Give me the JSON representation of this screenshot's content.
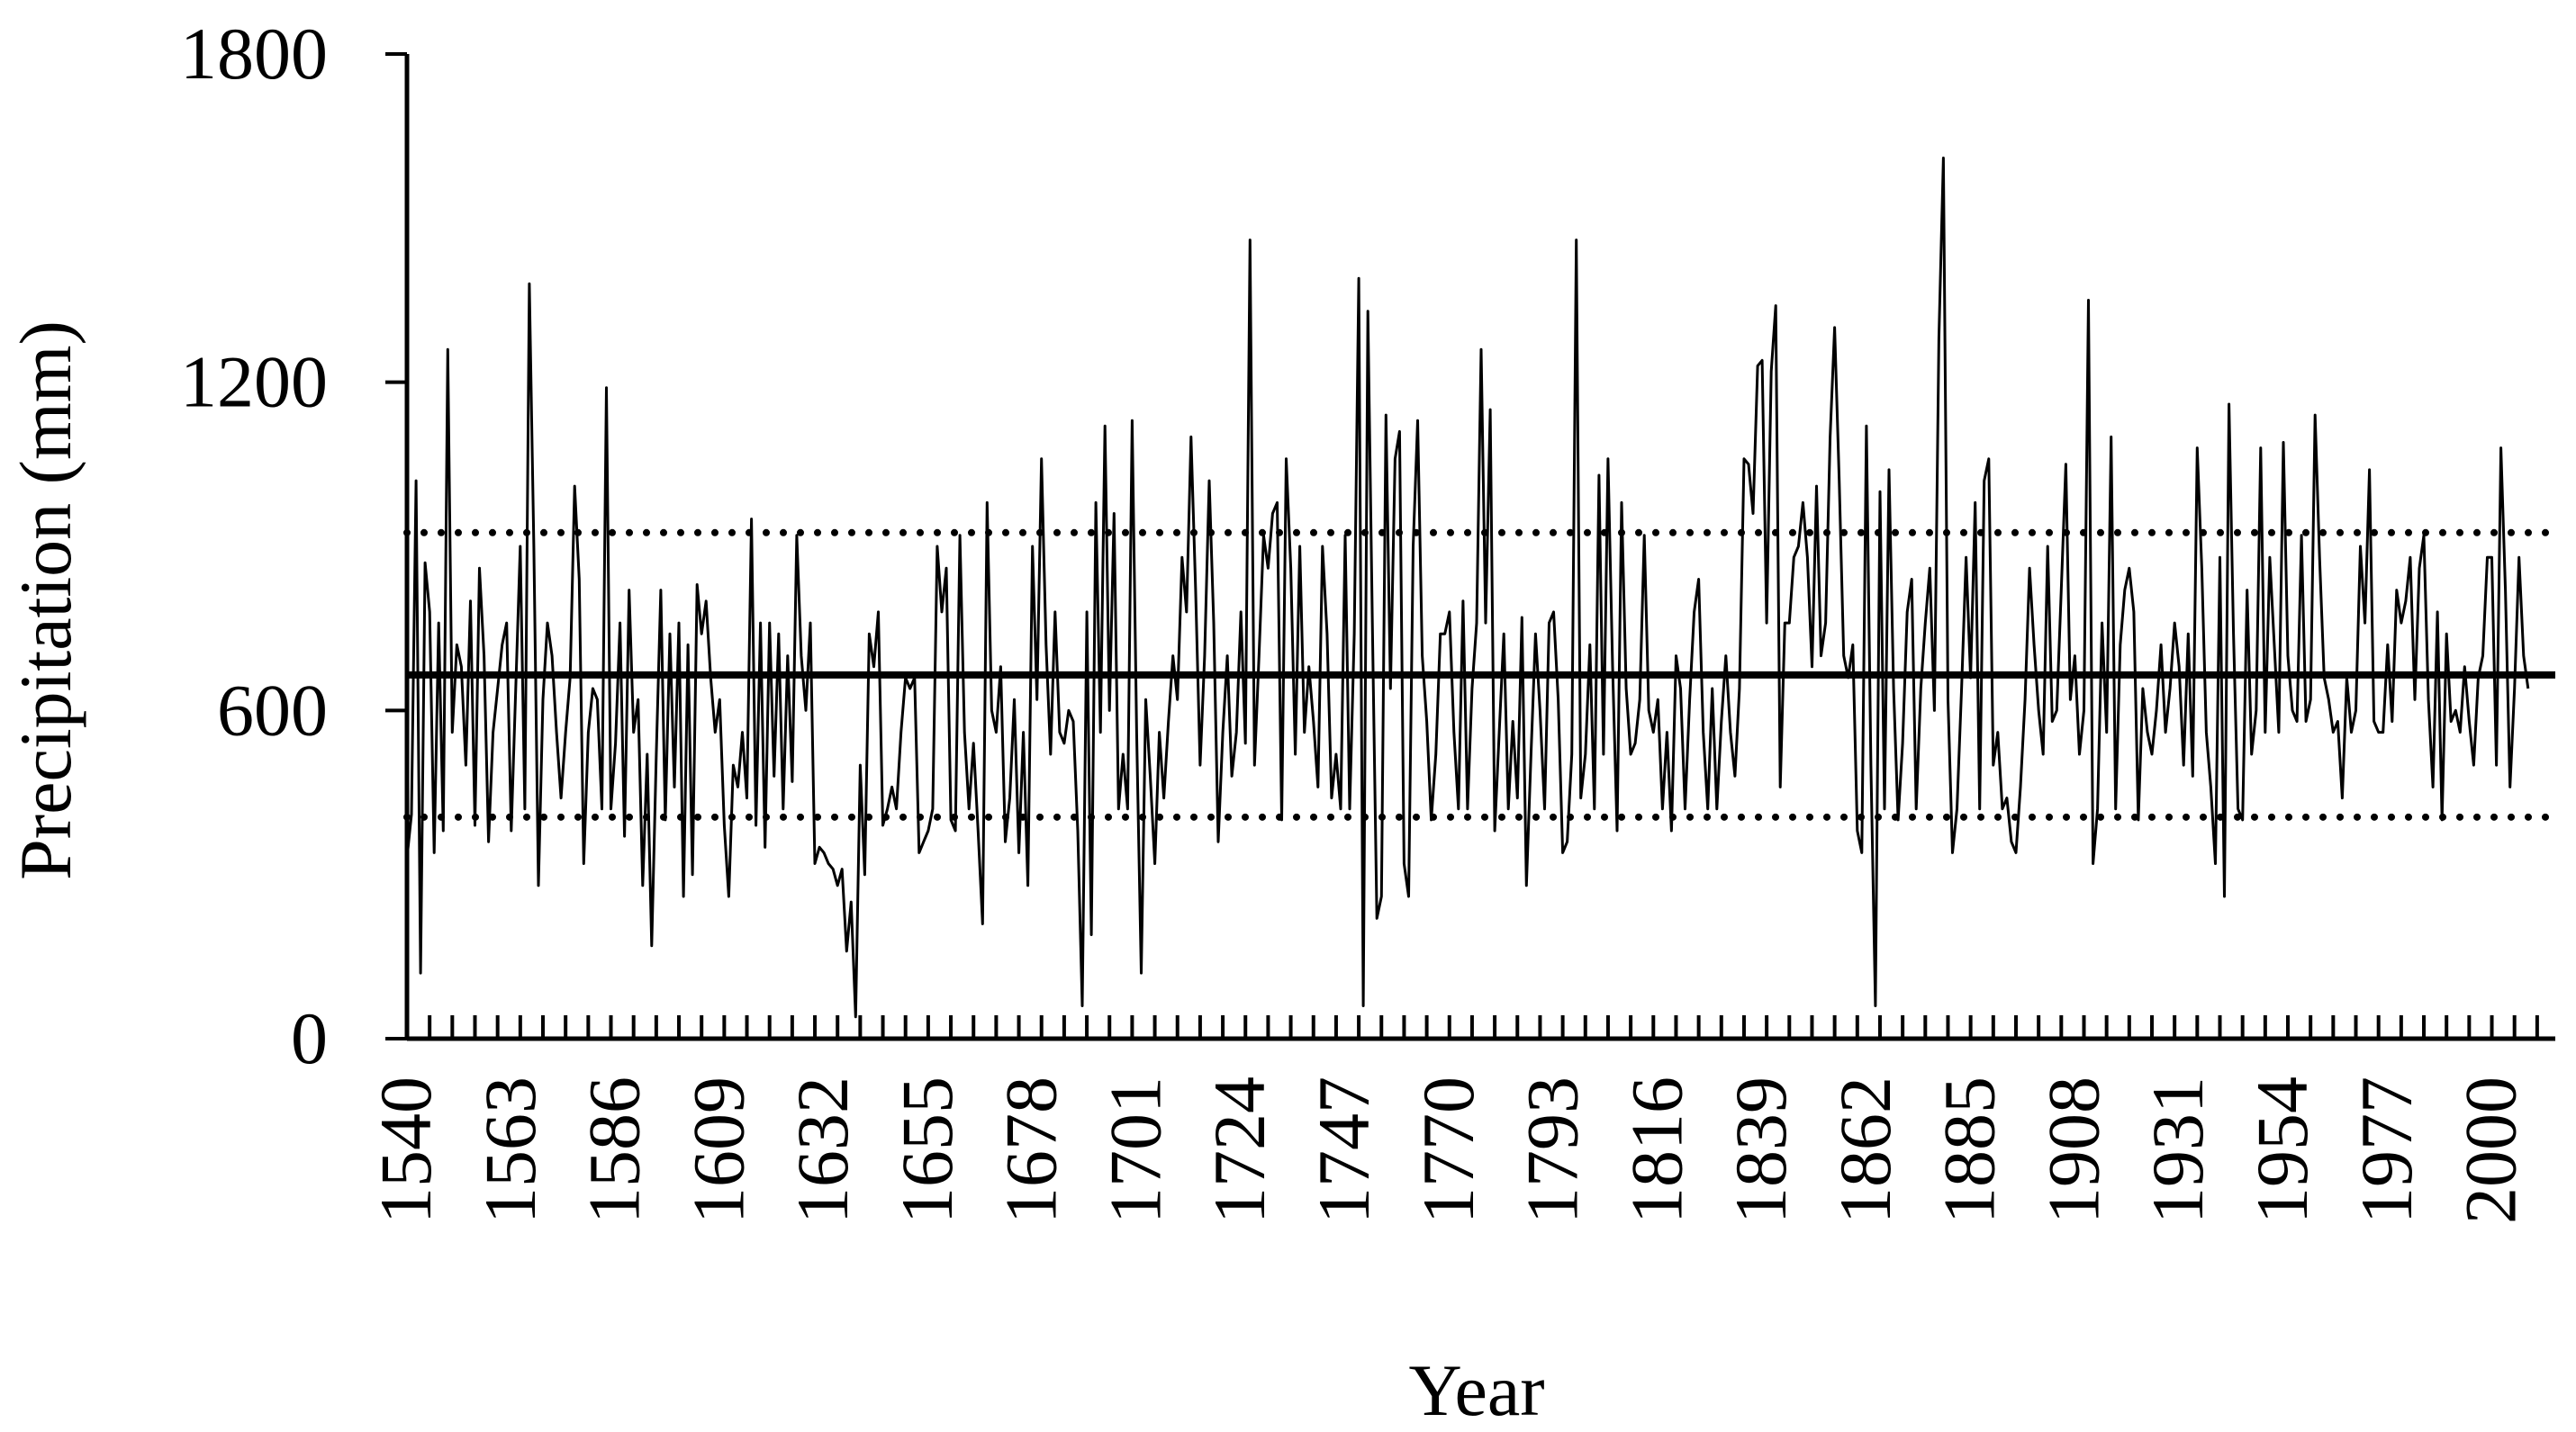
{
  "chart_data": {
    "type": "line",
    "xlabel": "Year",
    "ylabel": "Precipitation (mm)",
    "ylim": [
      0,
      1800
    ],
    "yticks": [
      0,
      600,
      1200,
      1800
    ],
    "xlim": [
      1540,
      2014
    ],
    "xticks": [
      1540,
      1563,
      1586,
      1609,
      1632,
      1655,
      1678,
      1701,
      1724,
      1747,
      1770,
      1793,
      1816,
      1839,
      1862,
      1885,
      1908,
      1931,
      1954,
      1977,
      2000
    ],
    "grid": false,
    "reference_lines": [
      {
        "style": "solid",
        "value": 665
      },
      {
        "style": "dotted",
        "value": 925
      },
      {
        "style": "dotted",
        "value": 405
      }
    ],
    "series": [
      {
        "x_start": 1540,
        "x_step": 1,
        "values": [
          330,
          410,
          1020,
          120,
          870,
          780,
          340,
          760,
          380,
          1260,
          560,
          720,
          680,
          500,
          800,
          390,
          860,
          700,
          360,
          560,
          640,
          720,
          760,
          380,
          640,
          900,
          420,
          1380,
          900,
          280,
          620,
          760,
          700,
          560,
          440,
          560,
          660,
          1010,
          840,
          320,
          560,
          640,
          620,
          420,
          1190,
          420,
          540,
          760,
          370,
          820,
          560,
          620,
          280,
          520,
          170,
          520,
          820,
          400,
          740,
          460,
          760,
          260,
          720,
          300,
          830,
          740,
          800,
          660,
          560,
          620,
          390,
          260,
          500,
          460,
          560,
          440,
          950,
          390,
          760,
          350,
          760,
          480,
          740,
          420,
          700,
          470,
          920,
          700,
          600,
          760,
          320,
          350,
          340,
          320,
          310,
          280,
          310,
          160,
          250,
          40,
          500,
          300,
          740,
          680,
          780,
          390,
          420,
          460,
          420,
          560,
          660,
          640,
          660,
          340,
          360,
          380,
          420,
          900,
          780,
          860,
          400,
          380,
          920,
          560,
          420,
          540,
          380,
          210,
          980,
          600,
          560,
          680,
          360,
          440,
          620,
          340,
          560,
          280,
          900,
          620,
          1060,
          720,
          520,
          780,
          560,
          540,
          600,
          580,
          380,
          60,
          780,
          190,
          980,
          560,
          1120,
          600,
          960,
          420,
          520,
          420,
          1130,
          560,
          120,
          620,
          480,
          320,
          560,
          440,
          580,
          700,
          620,
          880,
          780,
          1100,
          820,
          500,
          700,
          1020,
          760,
          360,
          560,
          700,
          480,
          560,
          780,
          540,
          1460,
          500,
          700,
          920,
          860,
          960,
          980,
          400,
          1060,
          860,
          520,
          900,
          560,
          680,
          580,
          460,
          900,
          740,
          440,
          520,
          420,
          920,
          420,
          740,
          1390,
          60,
          1330,
          760,
          220,
          260,
          1140,
          640,
          1060,
          1110,
          320,
          260,
          900,
          1130,
          700,
          580,
          400,
          520,
          740,
          740,
          780,
          560,
          420,
          800,
          420,
          640,
          760,
          1260,
          760,
          1150,
          380,
          560,
          740,
          420,
          580,
          440,
          770,
          280,
          520,
          740,
          600,
          420,
          760,
          780,
          620,
          340,
          360,
          520,
          1460,
          440,
          520,
          720,
          420,
          1030,
          520,
          1060,
          680,
          380,
          980,
          640,
          520,
          540,
          620,
          920,
          600,
          560,
          620,
          420,
          560,
          380,
          700,
          640,
          420,
          620,
          780,
          840,
          560,
          420,
          640,
          420,
          580,
          700,
          560,
          480,
          640,
          1060,
          1050,
          960,
          1230,
          1240,
          760,
          1220,
          1340,
          460,
          760,
          760,
          880,
          900,
          980,
          880,
          680,
          1010,
          700,
          760,
          1100,
          1300,
          1020,
          700,
          660,
          720,
          380,
          340,
          1120,
          500,
          60,
          1000,
          420,
          1040,
          640,
          400,
          540,
          780,
          840,
          420,
          640,
          760,
          860,
          600,
          1280,
          1610,
          620,
          340,
          420,
          640,
          880,
          660,
          980,
          420,
          1020,
          1060,
          500,
          560,
          420,
          440,
          360,
          340,
          460,
          620,
          860,
          720,
          600,
          520,
          900,
          580,
          600,
          820,
          1050,
          620,
          700,
          520,
          600,
          1350,
          320,
          420,
          760,
          560,
          1100,
          420,
          720,
          820,
          860,
          780,
          400,
          640,
          560,
          520,
          600,
          720,
          560,
          640,
          760,
          680,
          500,
          740,
          480,
          1080,
          860,
          560,
          460,
          320,
          880,
          260,
          1160,
          740,
          420,
          400,
          820,
          520,
          600,
          1080,
          560,
          880,
          720,
          560,
          1090,
          700,
          600,
          580,
          920,
          580,
          620,
          1140,
          880,
          660,
          620,
          560,
          580,
          440,
          660,
          560,
          600,
          900,
          760,
          1040,
          580,
          560,
          560,
          720,
          580,
          820,
          760,
          800,
          880,
          620,
          860,
          920,
          620,
          460,
          780,
          400,
          740,
          580,
          600,
          560,
          680,
          580,
          500,
          660,
          700,
          880,
          880,
          500,
          1080,
          820,
          460,
          640,
          880,
          700,
          640
        ]
      }
    ]
  }
}
